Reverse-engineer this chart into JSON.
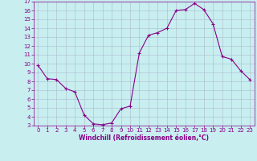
{
  "x": [
    0,
    1,
    2,
    3,
    4,
    5,
    6,
    7,
    8,
    9,
    10,
    11,
    12,
    13,
    14,
    15,
    16,
    17,
    18,
    19,
    20,
    21,
    22,
    23
  ],
  "y": [
    9.8,
    8.3,
    8.2,
    7.2,
    6.8,
    4.2,
    3.2,
    3.1,
    3.3,
    4.9,
    5.2,
    11.2,
    13.2,
    13.5,
    14.0,
    16.0,
    16.1,
    16.8,
    16.1,
    14.5,
    10.8,
    10.5,
    9.2,
    8.2
  ],
  "line_color": "#880088",
  "marker": "+",
  "marker_size": 3,
  "marker_lw": 0.8,
  "line_width": 0.8,
  "bg_color": "#c8eef0",
  "grid_color": "#aabbcc",
  "xlabel": "Windchill (Refroidissement éolien,°C)",
  "xlabel_color": "#880088",
  "tick_color": "#880088",
  "spine_color": "#880088",
  "ylim": [
    3,
    17
  ],
  "xlim": [
    -0.5,
    23.5
  ],
  "yticks": [
    3,
    4,
    5,
    6,
    7,
    8,
    9,
    10,
    11,
    12,
    13,
    14,
    15,
    16,
    17
  ],
  "xticks": [
    0,
    1,
    2,
    3,
    4,
    5,
    6,
    7,
    8,
    9,
    10,
    11,
    12,
    13,
    14,
    15,
    16,
    17,
    18,
    19,
    20,
    21,
    22,
    23
  ],
  "tick_fontsize": 5.0,
  "xlabel_fontsize": 5.5,
  "xlabel_fontweight": "bold"
}
